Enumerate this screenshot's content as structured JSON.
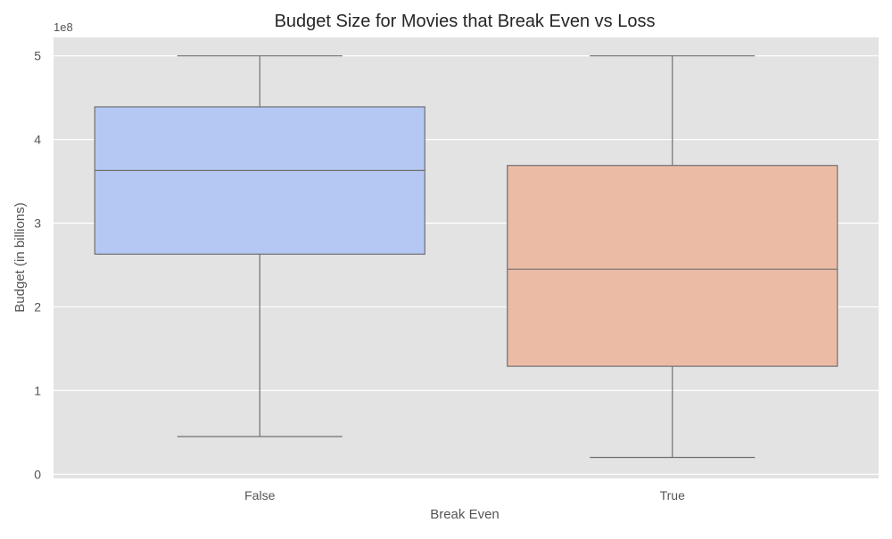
{
  "chart_data": {
    "type": "box",
    "title": "Budget Size for Movies that Break Even vs Loss",
    "xlabel": "Break Even",
    "ylabel": "Budget (in billions)",
    "y_offset_label": "1e8",
    "y_unit_scale": 100000000,
    "ylim": [
      -0.05,
      5.22
    ],
    "yticks": [
      0,
      1,
      2,
      3,
      4,
      5
    ],
    "grid": true,
    "categories": [
      "False",
      "True"
    ],
    "boxes": [
      {
        "category": "False",
        "whisker_low": 0.45,
        "q1": 2.63,
        "median": 3.63,
        "q3": 4.39,
        "whisker_high": 5.0,
        "color": "#b4c8f3"
      },
      {
        "category": "True",
        "whisker_low": 0.2,
        "q1": 1.29,
        "median": 2.45,
        "q3": 3.69,
        "whisker_high": 5.0,
        "color": "#ecbba6"
      }
    ]
  },
  "colors": {
    "plot_background": "#e3e3e3",
    "grid": "#ffffff",
    "box_edge": "#707070",
    "text": "#555555",
    "title": "#262626"
  }
}
